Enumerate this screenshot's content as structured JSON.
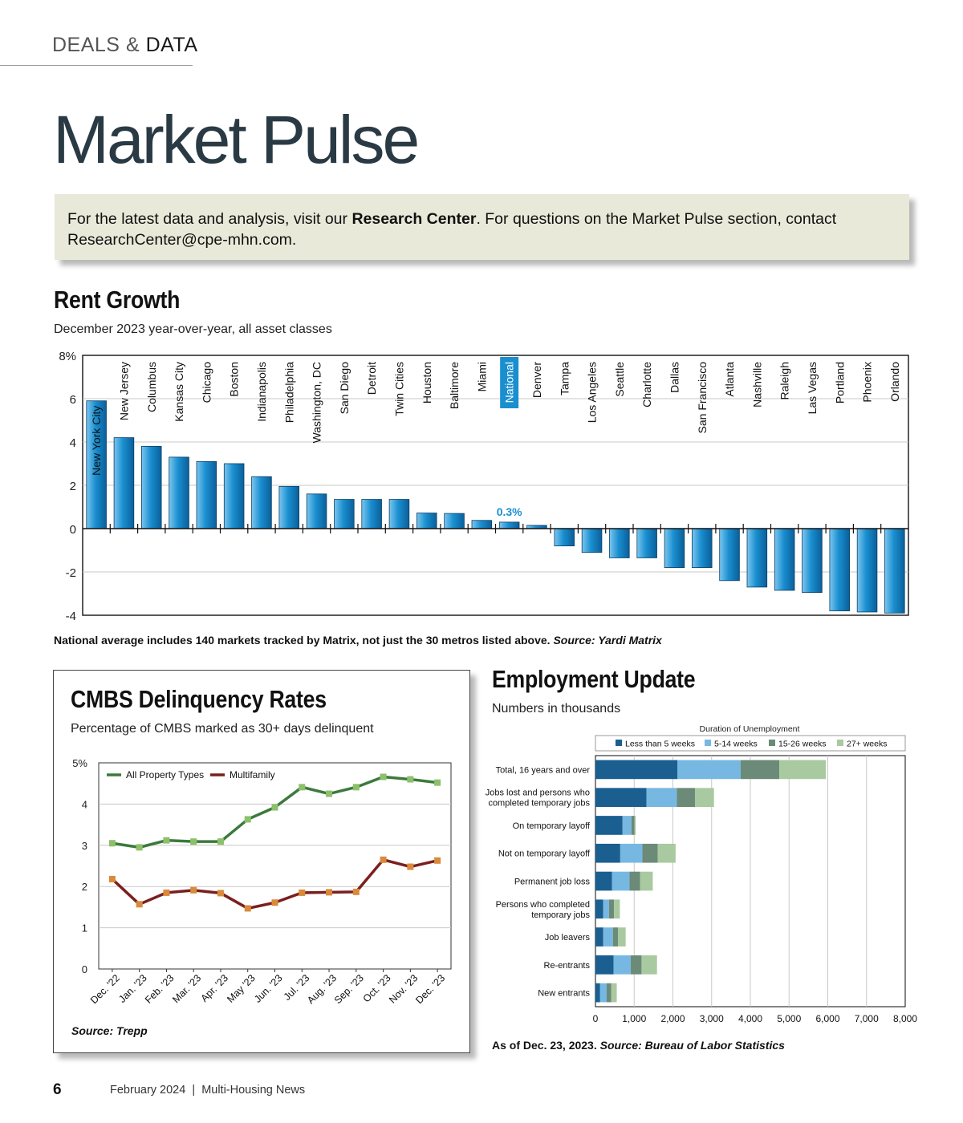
{
  "header": {
    "section_label_part1": "DEALS",
    "section_label_amp": "&",
    "section_label_part2": "DATA"
  },
  "page_title": "Market Pulse",
  "info_box": {
    "text_before": "For the latest data and analysis, visit our ",
    "link_text": "Research Center",
    "text_after": ". For questions on the Market Pulse section, contact ResearchCenter@cpe-mhn.com."
  },
  "rent_growth": {
    "title": "Rent Growth",
    "subtitle": "December 2023 year-over-year, all asset classes",
    "note": "National average includes 140 markets tracked by Matrix, not just the 30 metros listed above.",
    "source": "Source: Yardi Matrix"
  },
  "cmbs": {
    "title": "CMBS Delinquency Rates",
    "subtitle": "Percentage of CMBS marked as 30+ days delinquent",
    "source": "Source: Trepp"
  },
  "employment": {
    "title": "Employment Update",
    "subtitle": "Numbers in thousands",
    "note": "As of Dec. 23, 2023.",
    "source": "Source: Bureau of Labor Statistics"
  },
  "footer": {
    "page_number": "6",
    "publication": "February 2024  |  Multi-Housing News"
  },
  "chart_data": [
    {
      "id": "rent_growth",
      "type": "bar",
      "categories": [
        "New York City",
        "New Jersey",
        "Columbus",
        "Kansas City",
        "Chicago",
        "Boston",
        "Indianapolis",
        "Philadelphia",
        "Washington, DC",
        "San Diego",
        "Detroit",
        "Twin Cities",
        "Houston",
        "Baltimore",
        "Miami",
        "National",
        "Denver",
        "Tampa",
        "Los Angeles",
        "Seattle",
        "Charlotte",
        "Dallas",
        "San Francisco",
        "Atlanta",
        "Nashville",
        "Raleigh",
        "Las Vegas",
        "Portland",
        "Phoenix",
        "Orlando"
      ],
      "values": [
        5.9,
        4.2,
        3.8,
        3.3,
        3.1,
        3.0,
        2.4,
        1.95,
        1.6,
        1.35,
        1.35,
        1.35,
        0.72,
        0.7,
        0.38,
        0.3,
        0.15,
        -0.8,
        -1.1,
        -1.35,
        -1.35,
        -1.8,
        -1.8,
        -2.4,
        -2.7,
        -2.85,
        -2.95,
        -3.8,
        -3.85,
        -3.9
      ],
      "ylim": [
        -4,
        8
      ],
      "yticks": [
        -4,
        -2,
        0,
        2,
        4,
        6,
        8
      ],
      "ytick_labels": [
        "-4",
        "-2",
        "0",
        "2",
        "4",
        "6",
        "8%"
      ],
      "highlight": {
        "category": "National",
        "label": "0.3%"
      },
      "grid": true,
      "colors": {
        "bar": "#1a8fd0",
        "bar_dark": "#0a5f9a",
        "bar_light": "#7cc6ee",
        "highlight_bg": "#1a8fd0"
      }
    },
    {
      "id": "cmbs",
      "type": "line",
      "x": [
        "Dec. '22",
        "Jan. '23",
        "Feb. '23",
        "Mar. '23",
        "Apr. '23",
        "May '23",
        "Jun. '23",
        "Jul. '23",
        "Aug. '23",
        "Sep. '23",
        "Oct. '23",
        "Nov. '23",
        "Dec. '23"
      ],
      "series": [
        {
          "name": "All Property Types",
          "color": "#3b7a3b",
          "marker_color": "#8cc06a",
          "values": [
            3.05,
            2.95,
            3.12,
            3.09,
            3.09,
            3.63,
            3.92,
            4.41,
            4.25,
            4.41,
            4.66,
            4.6,
            4.52
          ]
        },
        {
          "name": "Multifamily",
          "color": "#7a1f1f",
          "marker_color": "#d98a3a",
          "values": [
            2.18,
            1.57,
            1.85,
            1.91,
            1.84,
            1.47,
            1.61,
            1.85,
            1.86,
            1.87,
            2.65,
            2.48,
            2.63
          ]
        }
      ],
      "ylim": [
        0,
        5
      ],
      "yticks": [
        0,
        1,
        2,
        3,
        4,
        5
      ],
      "ytick_labels": [
        "0",
        "1",
        "2",
        "3",
        "4",
        "5%"
      ],
      "legend": "top-left",
      "grid": true
    },
    {
      "id": "employment",
      "type": "bar",
      "orientation": "horizontal",
      "stacked": true,
      "legend_title": "Duration of Unemployment",
      "categories": [
        "Total, 16 years and over",
        "Jobs lost and persons who completed temporary jobs",
        "On temporary layoff",
        "Not on temporary layoff",
        "Permanent job loss",
        "Persons who completed temporary jobs",
        "Job leavers",
        "Re-entrants",
        "New entrants"
      ],
      "category_lines": [
        [
          "Total, 16 years and over"
        ],
        [
          "Jobs lost and persons who",
          "completed temporary jobs"
        ],
        [
          "On temporary layoff"
        ],
        [
          "Not on temporary layoff"
        ],
        [
          "Permanent job loss"
        ],
        [
          "Persons who completed",
          "temporary jobs"
        ],
        [
          "Job leavers"
        ],
        [
          "Re-entrants"
        ],
        [
          "New entrants"
        ]
      ],
      "series": [
        {
          "name": "Less than 5 weeks",
          "color": "#1a5f8f",
          "values": [
            2120,
            1320,
            700,
            640,
            430,
            200,
            200,
            470,
            120
          ]
        },
        {
          "name": "5-14 weeks",
          "color": "#77b8e2",
          "values": [
            1630,
            780,
            230,
            570,
            450,
            150,
            250,
            440,
            170
          ]
        },
        {
          "name": "15-26 weeks",
          "color": "#6b8a78",
          "values": [
            1000,
            470,
            80,
            400,
            270,
            130,
            130,
            280,
            120
          ]
        },
        {
          "name": "27+ weeks",
          "color": "#a9c9a0",
          "values": [
            1200,
            490,
            30,
            460,
            330,
            150,
            200,
            400,
            140
          ]
        }
      ],
      "xlim": [
        0,
        8000
      ],
      "xticks": [
        0,
        1000,
        2000,
        3000,
        4000,
        5000,
        6000,
        7000,
        8000
      ],
      "xtick_labels": [
        "0",
        "1,000",
        "2,000",
        "3,000",
        "4,000",
        "5,000",
        "6,000",
        "7,000",
        "8,000"
      ],
      "legend": "top",
      "grid": true
    }
  ]
}
